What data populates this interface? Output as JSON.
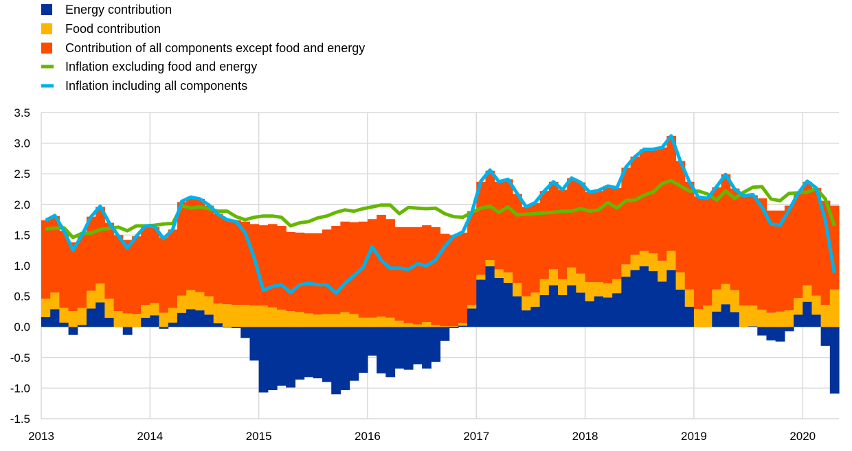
{
  "chart_data": {
    "type": "bar",
    "stacked": true,
    "title": "",
    "xlabel": "",
    "ylabel": "",
    "ylim": [
      -1.5,
      3.5
    ],
    "yticks": [
      "3.5",
      "3.0",
      "2.5",
      "2.0",
      "1.5",
      "1.0",
      "0.5",
      "0.0",
      "-0.5",
      "-1.0",
      "-1.5"
    ],
    "xticks": [
      "2013",
      "2014",
      "2015",
      "2016",
      "2017",
      "2018",
      "2019",
      "2020"
    ],
    "grid": true,
    "legend_position": "top-left",
    "months": [
      "2013-01",
      "2013-02",
      "2013-03",
      "2013-04",
      "2013-05",
      "2013-06",
      "2013-07",
      "2013-08",
      "2013-09",
      "2013-10",
      "2013-11",
      "2013-12",
      "2014-01",
      "2014-02",
      "2014-03",
      "2014-04",
      "2014-05",
      "2014-06",
      "2014-07",
      "2014-08",
      "2014-09",
      "2014-10",
      "2014-11",
      "2014-12",
      "2015-01",
      "2015-02",
      "2015-03",
      "2015-04",
      "2015-05",
      "2015-06",
      "2015-07",
      "2015-08",
      "2015-09",
      "2015-10",
      "2015-11",
      "2015-12",
      "2016-01",
      "2016-02",
      "2016-03",
      "2016-04",
      "2016-05",
      "2016-06",
      "2016-07",
      "2016-08",
      "2016-09",
      "2016-10",
      "2016-11",
      "2016-12",
      "2017-01",
      "2017-02",
      "2017-03",
      "2017-04",
      "2017-05",
      "2017-06",
      "2017-07",
      "2017-08",
      "2017-09",
      "2017-10",
      "2017-11",
      "2017-12",
      "2018-01",
      "2018-02",
      "2018-03",
      "2018-04",
      "2018-05",
      "2018-06",
      "2018-07",
      "2018-08",
      "2018-09",
      "2018-10",
      "2018-11",
      "2018-12",
      "2019-01",
      "2019-02",
      "2019-03",
      "2019-04",
      "2019-05",
      "2019-06",
      "2019-07",
      "2019-08",
      "2019-09",
      "2019-10",
      "2019-11",
      "2019-12",
      "2020-01",
      "2020-02",
      "2020-03",
      "2020-04"
    ],
    "series": [
      {
        "name": "Energy contribution",
        "kind": "bar",
        "color": "#003299",
        "values": [
          0.16,
          0.29,
          0.07,
          -0.13,
          0.03,
          0.3,
          0.4,
          0.15,
          0.0,
          -0.13,
          0.0,
          0.15,
          0.19,
          -0.03,
          0.07,
          0.23,
          0.29,
          0.27,
          0.2,
          0.06,
          -0.01,
          -0.02,
          -0.18,
          -0.55,
          -1.07,
          -1.03,
          -0.96,
          -0.99,
          -0.86,
          -0.82,
          -0.84,
          -0.9,
          -1.1,
          -1.03,
          -0.88,
          -0.75,
          -0.47,
          -0.76,
          -0.82,
          -0.68,
          -0.7,
          -0.61,
          -0.68,
          -0.57,
          -0.23,
          -0.02,
          0.02,
          0.3,
          0.77,
          0.99,
          0.8,
          0.72,
          0.5,
          0.27,
          0.33,
          0.52,
          0.68,
          0.52,
          0.68,
          0.56,
          0.42,
          0.5,
          0.48,
          0.55,
          0.82,
          0.93,
          0.99,
          0.91,
          0.74,
          0.93,
          0.61,
          0.33,
          0.0,
          0.0,
          0.25,
          0.37,
          0.24,
          0.0,
          0.01,
          -0.14,
          -0.22,
          -0.24,
          -0.07,
          0.2,
          0.41,
          0.2,
          -0.31,
          -1.09
        ]
      },
      {
        "name": "Food contribution",
        "kind": "bar",
        "color": "#FFB400",
        "values": [
          0.3,
          0.27,
          0.24,
          0.26,
          0.28,
          0.29,
          0.31,
          0.31,
          0.26,
          0.22,
          0.21,
          0.21,
          0.2,
          0.23,
          0.24,
          0.28,
          0.31,
          0.3,
          0.3,
          0.32,
          0.37,
          0.36,
          0.36,
          0.35,
          0.35,
          0.32,
          0.28,
          0.26,
          0.24,
          0.22,
          0.2,
          0.21,
          0.21,
          0.24,
          0.21,
          0.15,
          0.15,
          0.17,
          0.15,
          0.1,
          0.06,
          0.04,
          0.08,
          0.03,
          0.01,
          0.01,
          0.04,
          0.06,
          0.08,
          0.1,
          0.14,
          0.17,
          0.22,
          0.23,
          0.23,
          0.26,
          0.26,
          0.26,
          0.29,
          0.31,
          0.31,
          0.23,
          0.23,
          0.23,
          0.2,
          0.25,
          0.25,
          0.29,
          0.34,
          0.31,
          0.28,
          0.28,
          0.29,
          0.35,
          0.36,
          0.33,
          0.36,
          0.35,
          0.34,
          0.28,
          0.23,
          0.25,
          0.27,
          0.27,
          0.27,
          0.31,
          0.36,
          0.61
        ]
      },
      {
        "name": "Contribution of all components except food and energy",
        "kind": "bar",
        "color": "#FF4B00",
        "values": [
          1.28,
          1.25,
          1.26,
          1.12,
          1.19,
          1.21,
          1.25,
          1.24,
          1.24,
          1.2,
          1.27,
          1.29,
          1.24,
          1.23,
          1.28,
          1.53,
          1.51,
          1.52,
          1.48,
          1.47,
          1.39,
          1.38,
          1.36,
          1.33,
          1.31,
          1.36,
          1.37,
          1.29,
          1.3,
          1.31,
          1.33,
          1.38,
          1.44,
          1.48,
          1.5,
          1.57,
          1.61,
          1.66,
          1.61,
          1.53,
          1.57,
          1.59,
          1.58,
          1.6,
          1.51,
          1.49,
          1.48,
          1.53,
          1.52,
          1.46,
          1.43,
          1.52,
          1.45,
          1.46,
          1.46,
          1.44,
          1.43,
          1.46,
          1.46,
          1.49,
          1.47,
          1.49,
          1.59,
          1.49,
          1.58,
          1.6,
          1.66,
          1.7,
          1.85,
          1.88,
          1.82,
          1.76,
          1.84,
          1.76,
          1.67,
          1.79,
          1.66,
          1.8,
          1.8,
          1.82,
          1.67,
          1.65,
          1.71,
          1.7,
          1.69,
          1.76,
          1.7,
          1.37
        ]
      },
      {
        "name": "Inflation excluding food and energy",
        "kind": "line",
        "color": "#65B800",
        "values": [
          1.6,
          1.61,
          1.62,
          1.46,
          1.53,
          1.53,
          1.59,
          1.61,
          1.63,
          1.57,
          1.65,
          1.65,
          1.66,
          1.68,
          1.69,
          1.98,
          1.94,
          1.96,
          1.93,
          1.89,
          1.89,
          1.8,
          1.75,
          1.79,
          1.81,
          1.81,
          1.79,
          1.65,
          1.7,
          1.72,
          1.78,
          1.81,
          1.87,
          1.91,
          1.89,
          1.93,
          1.96,
          1.99,
          1.99,
          1.85,
          1.95,
          1.94,
          1.93,
          1.94,
          1.85,
          1.8,
          1.79,
          1.87,
          1.94,
          1.97,
          1.87,
          1.96,
          1.83,
          1.84,
          1.85,
          1.86,
          1.87,
          1.89,
          1.89,
          1.93,
          1.89,
          1.91,
          2.03,
          1.94,
          2.06,
          2.07,
          2.15,
          2.2,
          2.34,
          2.39,
          2.3,
          2.22,
          2.22,
          2.17,
          2.07,
          2.22,
          2.1,
          2.2,
          2.28,
          2.29,
          2.09,
          2.06,
          2.18,
          2.19,
          2.2,
          2.26,
          2.09,
          1.65
        ]
      },
      {
        "name": "Inflation including all components",
        "kind": "line",
        "color": "#00B1EA",
        "values": [
          1.74,
          1.82,
          1.57,
          1.25,
          1.5,
          1.8,
          1.97,
          1.7,
          1.49,
          1.29,
          1.48,
          1.65,
          1.64,
          1.44,
          1.59,
          2.05,
          2.12,
          2.09,
          1.99,
          1.84,
          1.75,
          1.72,
          1.54,
          1.13,
          0.6,
          0.66,
          0.69,
          0.56,
          0.69,
          0.71,
          0.69,
          0.69,
          0.55,
          0.71,
          0.84,
          0.97,
          1.31,
          1.09,
          0.96,
          0.96,
          0.94,
          1.03,
          1.0,
          1.09,
          1.31,
          1.48,
          1.55,
          1.87,
          2.38,
          2.56,
          2.37,
          2.41,
          2.18,
          1.96,
          2.03,
          2.22,
          2.37,
          2.24,
          2.43,
          2.36,
          2.2,
          2.23,
          2.3,
          2.27,
          2.61,
          2.78,
          2.9,
          2.9,
          2.93,
          3.12,
          2.71,
          2.37,
          2.12,
          2.1,
          2.29,
          2.49,
          2.25,
          2.14,
          2.16,
          1.96,
          1.68,
          1.66,
          1.91,
          2.18,
          2.38,
          2.27,
          1.74,
          0.88
        ]
      }
    ]
  }
}
